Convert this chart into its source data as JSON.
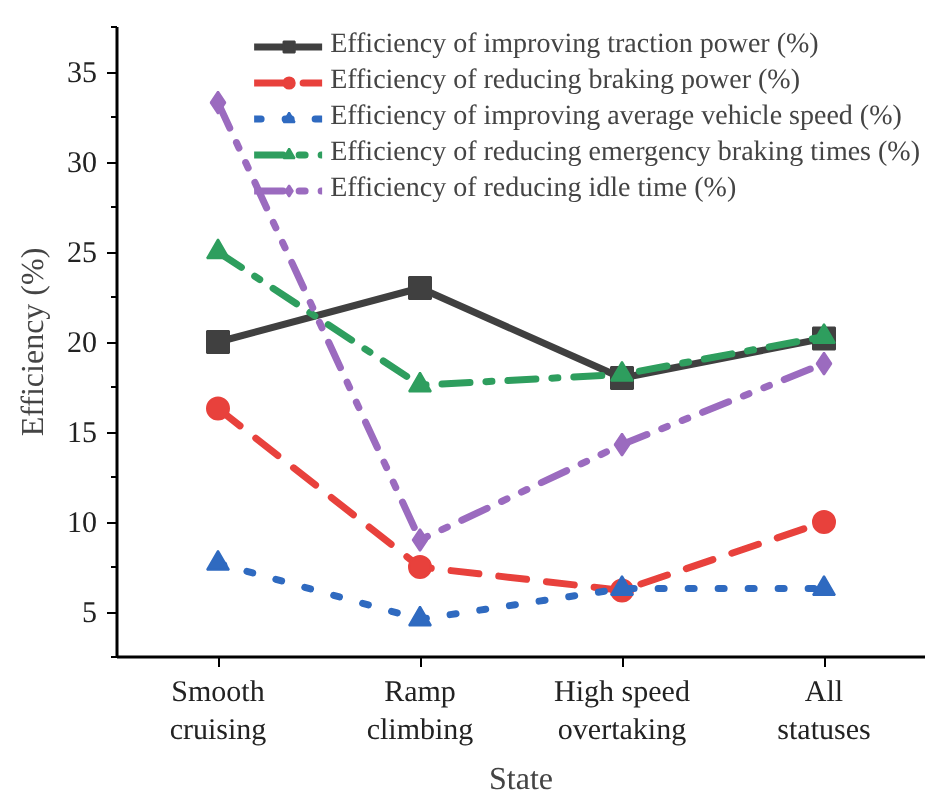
{
  "chart_data": {
    "type": "line",
    "xlabel": "State",
    "ylabel": "Efficiency (%)",
    "categories": [
      "Smooth\ncruising",
      "Ramp\nclimbing",
      "High speed\novertaking",
      "All\nstatuses"
    ],
    "ylim": [
      2.5,
      37.5
    ],
    "yticks": [
      5,
      10,
      15,
      20,
      25,
      30,
      35
    ],
    "grid": false,
    "legend": "top right",
    "series": [
      {
        "name": "Efficiency of improving traction power (%)",
        "color": "#404040",
        "marker": "square",
        "line_style": "solid",
        "values": [
          20,
          23,
          18,
          20.2
        ]
      },
      {
        "name": "Efficiency of reducing braking power (%)",
        "color": "#e8413c",
        "marker": "circle",
        "line_style": "dashed",
        "values": [
          16.3,
          7.5,
          6.2,
          10.0
        ]
      },
      {
        "name": "Efficiency of improving average vehicle speed (%)",
        "color": "#2f6ac0",
        "marker": "triangle",
        "line_style": "dotted",
        "values": [
          7.7,
          4.6,
          6.3,
          6.3
        ]
      },
      {
        "name": "Efficiency of reducing emergency braking times (%)",
        "color": "#2e9e5e",
        "marker": "triangle",
        "line_style": "dashdot",
        "values": [
          25,
          17.6,
          18.2,
          20.3
        ]
      },
      {
        "name": "Efficiency of reducing idle time (%)",
        "color": "#9b6bbf",
        "marker": "diamond",
        "line_style": "dashdotdot",
        "values": [
          33.3,
          9.0,
          14.3,
          18.8
        ]
      }
    ]
  }
}
